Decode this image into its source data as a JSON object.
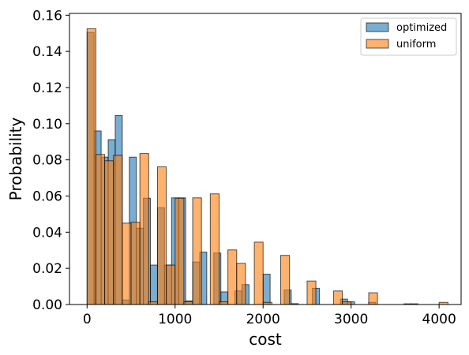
{
  "chart_data": {
    "type": "bar",
    "title": "",
    "xlabel": "cost",
    "ylabel": "Probability",
    "xlim": [
      -200,
      4250
    ],
    "ylim": [
      0,
      0.161
    ],
    "xticks": [
      0,
      1000,
      2000,
      3000,
      4000
    ],
    "yticks": [
      0.0,
      0.02,
      0.04,
      0.06,
      0.08,
      0.1,
      0.12,
      0.14,
      0.16
    ],
    "xtick_labels": [
      "0",
      "1000",
      "2000",
      "3000",
      "4000"
    ],
    "ytick_labels": [
      "0.00",
      "0.02",
      "0.04",
      "0.06",
      "0.08",
      "0.10",
      "0.12",
      "0.14",
      "0.16"
    ],
    "grid": false,
    "legend_position": "top-right",
    "series": [
      {
        "name": "optimized",
        "color": "#1f77b4",
        "opacity": 0.6,
        "bars": [
          {
            "x0": 0,
            "x1": 80,
            "y": 0.1505
          },
          {
            "x0": 80,
            "x1": 160,
            "y": 0.096
          },
          {
            "x0": 160,
            "x1": 240,
            "y": 0.0815
          },
          {
            "x0": 240,
            "x1": 320,
            "y": 0.0912
          },
          {
            "x0": 320,
            "x1": 400,
            "y": 0.1045
          },
          {
            "x0": 400,
            "x1": 480,
            "y": 0.0025
          },
          {
            "x0": 480,
            "x1": 560,
            "y": 0.0815
          },
          {
            "x0": 560,
            "x1": 640,
            "y": 0.0422
          },
          {
            "x0": 640,
            "x1": 720,
            "y": 0.0588
          },
          {
            "x0": 720,
            "x1": 800,
            "y": 0.0218
          },
          {
            "x0": 800,
            "x1": 880,
            "y": 0.0535
          },
          {
            "x0": 880,
            "x1": 960,
            "y": 0.0218
          },
          {
            "x0": 960,
            "x1": 1040,
            "y": 0.059
          },
          {
            "x0": 1040,
            "x1": 1120,
            "y": 0.059
          },
          {
            "x0": 1120,
            "x1": 1200,
            "y": 0.002
          },
          {
            "x0": 1200,
            "x1": 1280,
            "y": 0.0235
          },
          {
            "x0": 1280,
            "x1": 1360,
            "y": 0.029
          },
          {
            "x0": 1440,
            "x1": 1520,
            "y": 0.0285
          },
          {
            "x0": 1520,
            "x1": 1600,
            "y": 0.007
          },
          {
            "x0": 1680,
            "x1": 1760,
            "y": 0.0075
          },
          {
            "x0": 1760,
            "x1": 1840,
            "y": 0.011
          },
          {
            "x0": 2000,
            "x1": 2080,
            "y": 0.0168
          },
          {
            "x0": 2240,
            "x1": 2320,
            "y": 0.008
          },
          {
            "x0": 2320,
            "x1": 2400,
            "y": 0.0005
          },
          {
            "x0": 2560,
            "x1": 2640,
            "y": 0.009
          },
          {
            "x0": 2880,
            "x1": 2960,
            "y": 0.003
          },
          {
            "x0": 2960,
            "x1": 3040,
            "y": 0.0015
          },
          {
            "x0": 3200,
            "x1": 3280,
            "y": 0.0012
          },
          {
            "x0": 3600,
            "x1": 3680,
            "y": 0.0004
          },
          {
            "x0": 3680,
            "x1": 3760,
            "y": 0.0004
          }
        ]
      },
      {
        "name": "uniform",
        "color": "#ff7f0e",
        "opacity": 0.6,
        "bars": [
          {
            "x0": 0,
            "x1": 100,
            "y": 0.1525
          },
          {
            "x0": 100,
            "x1": 200,
            "y": 0.083
          },
          {
            "x0": 200,
            "x1": 300,
            "y": 0.0795
          },
          {
            "x0": 300,
            "x1": 400,
            "y": 0.0825
          },
          {
            "x0": 400,
            "x1": 500,
            "y": 0.045
          },
          {
            "x0": 500,
            "x1": 600,
            "y": 0.0455
          },
          {
            "x0": 600,
            "x1": 700,
            "y": 0.0835
          },
          {
            "x0": 700,
            "x1": 800,
            "y": 0.0015
          },
          {
            "x0": 800,
            "x1": 900,
            "y": 0.0762
          },
          {
            "x0": 900,
            "x1": 1000,
            "y": 0.0218
          },
          {
            "x0": 1000,
            "x1": 1100,
            "y": 0.0588
          },
          {
            "x0": 1100,
            "x1": 1200,
            "y": 0.0015
          },
          {
            "x0": 1200,
            "x1": 1300,
            "y": 0.059
          },
          {
            "x0": 1400,
            "x1": 1500,
            "y": 0.0612
          },
          {
            "x0": 1500,
            "x1": 1600,
            "y": 0.0015
          },
          {
            "x0": 1600,
            "x1": 1700,
            "y": 0.0302
          },
          {
            "x0": 1700,
            "x1": 1800,
            "y": 0.0228
          },
          {
            "x0": 1900,
            "x1": 2000,
            "y": 0.0345
          },
          {
            "x0": 2000,
            "x1": 2100,
            "y": 0.0012
          },
          {
            "x0": 2200,
            "x1": 2300,
            "y": 0.0272
          },
          {
            "x0": 2500,
            "x1": 2600,
            "y": 0.013
          },
          {
            "x0": 2800,
            "x1": 2900,
            "y": 0.0075
          },
          {
            "x0": 2900,
            "x1": 3000,
            "y": 0.0015
          },
          {
            "x0": 3200,
            "x1": 3300,
            "y": 0.0065
          },
          {
            "x0": 4000,
            "x1": 4100,
            "y": 0.0012
          }
        ]
      }
    ]
  }
}
